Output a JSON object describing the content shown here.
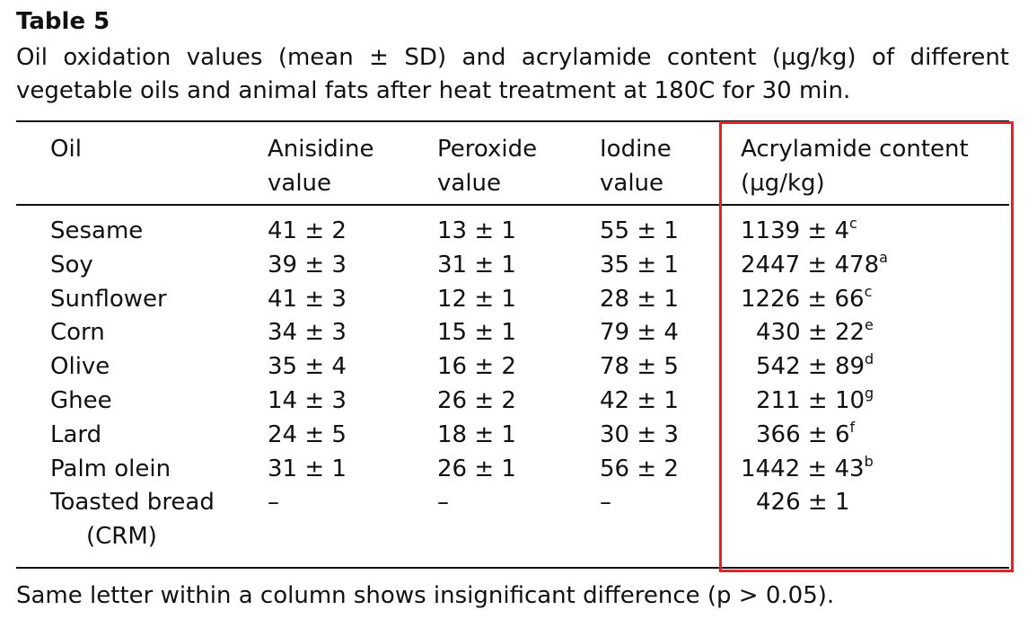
{
  "table": {
    "title": "Table 5",
    "caption": "Oil oxidation values (mean ± SD) and acrylamide content (µg/kg) of different vegetable oils and animal fats after heat treatment at 180C for 30 min.",
    "headers": {
      "oil": "Oil",
      "anisidine_line1": "Anisidine",
      "anisidine_line2": "value",
      "peroxide_line1": "Peroxide",
      "peroxide_line2": "value",
      "iodine_line1": "Iodine",
      "iodine_line2": "value",
      "acrylamide_line1": "Acrylamide content",
      "acrylamide_line2": "(µg/kg)"
    },
    "rows": [
      {
        "oil": "Sesame",
        "anisidine": "41 ± 2",
        "peroxide": "13 ± 1",
        "iodine": "55 ± 1",
        "acrylamide": "1139 ± 4",
        "acrylamide_sup": "c",
        "indent": false
      },
      {
        "oil": "Soy",
        "anisidine": "39 ± 3",
        "peroxide": "31 ± 1",
        "iodine": "35 ± 1",
        "acrylamide": "2447 ± 478",
        "acrylamide_sup": "a",
        "indent": false
      },
      {
        "oil": "Sunflower",
        "anisidine": "41 ± 3",
        "peroxide": "12 ± 1",
        "iodine": "28 ± 1",
        "acrylamide": "1226 ± 66",
        "acrylamide_sup": "c",
        "indent": false
      },
      {
        "oil": "Corn",
        "anisidine": "34 ± 3",
        "peroxide": "15 ± 1",
        "iodine": "79 ± 4",
        "acrylamide": "430 ± 22",
        "acrylamide_sup": "e",
        "indent": true
      },
      {
        "oil": "Olive",
        "anisidine": "35 ± 4",
        "peroxide": "16 ± 2",
        "iodine": "78 ± 5",
        "acrylamide": "542 ± 89",
        "acrylamide_sup": "d",
        "indent": true
      },
      {
        "oil": "Ghee",
        "anisidine": "14 ± 3",
        "peroxide": "26 ± 2",
        "iodine": "42 ± 1",
        "acrylamide": "211 ± 10",
        "acrylamide_sup": "g",
        "indent": true
      },
      {
        "oil": "Lard",
        "anisidine": "24 ± 5",
        "peroxide": "18 ± 1",
        "iodine": "30 ± 3",
        "acrylamide": "366 ± 6",
        "acrylamide_sup": "f",
        "indent": true
      },
      {
        "oil": "Palm olein",
        "anisidine": "31 ± 1",
        "peroxide": "26 ± 1",
        "iodine": "56 ± 2",
        "acrylamide": "1442 ± 43",
        "acrylamide_sup": "b",
        "indent": false
      }
    ],
    "last_row": {
      "oil_line1": "Toasted bread",
      "oil_line2": "(CRM)",
      "anisidine": "–",
      "peroxide": "–",
      "iodine": "–",
      "acrylamide": "426 ± 1"
    },
    "footnote": "Same letter within a column shows insignificant difference (p > 0.05).",
    "highlight_color": "#e0242f"
  }
}
